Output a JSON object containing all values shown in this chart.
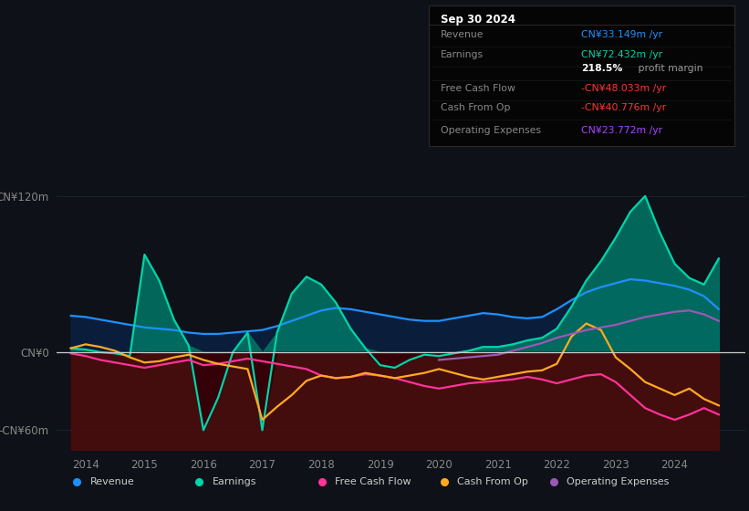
{
  "background_color": "#0e1117",
  "plot_bg_color": "#0e1117",
  "grid_color": "#1a2535",
  "zero_line_color": "#cccccc",
  "colors": {
    "revenue": "#1e90ff",
    "earnings": "#00d4aa",
    "fcf": "#ff3399",
    "cashfromop": "#ffaa22",
    "opex": "#9b59b6",
    "fill_earnings_pos": "#007766",
    "fill_earnings_neg": "#440011",
    "fill_revenue_pos": "#0a2040",
    "fill_negative_band": "#5a0a0a"
  },
  "ylim": [
    -75,
    145
  ],
  "yticks": [
    -60,
    0,
    120
  ],
  "ytick_labels": [
    "-CN¥60m",
    "CN¥0",
    "CN¥120m"
  ],
  "xlim": [
    2013.5,
    2025.2
  ],
  "xtick_positions": [
    2014,
    2015,
    2016,
    2017,
    2018,
    2019,
    2020,
    2021,
    2022,
    2023,
    2024
  ],
  "xtick_labels": [
    "2014",
    "2015",
    "2016",
    "2017",
    "2018",
    "2019",
    "2020",
    "2021",
    "2022",
    "2023",
    "2024"
  ],
  "legend_items": [
    {
      "label": "Revenue",
      "color": "#1e90ff"
    },
    {
      "label": "Earnings",
      "color": "#00d4aa"
    },
    {
      "label": "Free Cash Flow",
      "color": "#ff3399"
    },
    {
      "label": "Cash From Op",
      "color": "#ffaa22"
    },
    {
      "label": "Operating Expenses",
      "color": "#9b59b6"
    }
  ],
  "infobox": {
    "title": "Sep 30 2024",
    "rows": [
      {
        "label": "Revenue",
        "value": "CN¥33.149m /yr",
        "vcolor": "#1e90ff"
      },
      {
        "label": "Earnings",
        "value": "CN¥72.432m /yr",
        "vcolor": "#00d4aa"
      },
      {
        "label": "",
        "value": "218.5% profit margin",
        "vcolor": "#cccccc",
        "bold": "218.5%"
      },
      {
        "label": "Free Cash Flow",
        "value": "-CN¥48.033m /yr",
        "vcolor": "#ff3333"
      },
      {
        "label": "Cash From Op",
        "value": "-CN¥40.776m /yr",
        "vcolor": "#ff3333"
      },
      {
        "label": "Operating Expenses",
        "value": "CN¥23.772m /yr",
        "vcolor": "#aa44ff"
      }
    ]
  },
  "years": [
    2013.75,
    2014.0,
    2014.25,
    2014.5,
    2014.75,
    2015.0,
    2015.25,
    2015.5,
    2015.75,
    2016.0,
    2016.25,
    2016.5,
    2016.75,
    2017.0,
    2017.25,
    2017.5,
    2017.75,
    2018.0,
    2018.25,
    2018.5,
    2018.75,
    2019.0,
    2019.25,
    2019.5,
    2019.75,
    2020.0,
    2020.25,
    2020.5,
    2020.75,
    2021.0,
    2021.25,
    2021.5,
    2021.75,
    2022.0,
    2022.25,
    2022.5,
    2022.75,
    2023.0,
    2023.25,
    2023.5,
    2023.75,
    2024.0,
    2024.25,
    2024.5,
    2024.75
  ],
  "revenue": [
    28,
    27,
    25,
    23,
    21,
    19,
    18,
    17,
    15,
    14,
    14,
    15,
    16,
    17,
    20,
    24,
    28,
    32,
    34,
    33,
    31,
    29,
    27,
    25,
    24,
    24,
    26,
    28,
    30,
    29,
    27,
    26,
    27,
    33,
    40,
    46,
    50,
    53,
    56,
    55,
    53,
    51,
    48,
    43,
    33
  ],
  "earnings": [
    3,
    2,
    0,
    -1,
    -3,
    75,
    55,
    25,
    5,
    -60,
    -35,
    0,
    15,
    -60,
    15,
    45,
    58,
    52,
    38,
    18,
    3,
    -10,
    -12,
    -6,
    -2,
    -3,
    -1,
    1,
    4,
    4,
    6,
    9,
    11,
    18,
    35,
    55,
    70,
    88,
    108,
    120,
    92,
    68,
    57,
    52,
    72
  ],
  "fcf": [
    -1,
    -3,
    -6,
    -8,
    -10,
    -12,
    -10,
    -8,
    -6,
    -10,
    -9,
    -7,
    -5,
    -7,
    -9,
    -11,
    -13,
    -18,
    -20,
    -19,
    -17,
    -18,
    -20,
    -23,
    -26,
    -28,
    -26,
    -24,
    -23,
    -22,
    -21,
    -19,
    -21,
    -24,
    -21,
    -18,
    -17,
    -23,
    -33,
    -43,
    -48,
    -52,
    -48,
    -43,
    -48
  ],
  "cashfromop": [
    3,
    6,
    4,
    1,
    -4,
    -8,
    -7,
    -4,
    -2,
    -6,
    -9,
    -11,
    -13,
    -52,
    -42,
    -33,
    -22,
    -18,
    -20,
    -19,
    -16,
    -18,
    -20,
    -18,
    -16,
    -13,
    -16,
    -19,
    -21,
    -19,
    -17,
    -15,
    -14,
    -9,
    12,
    22,
    17,
    -4,
    -13,
    -23,
    -28,
    -33,
    -28,
    -36,
    -41
  ],
  "opex": [
    null,
    null,
    null,
    null,
    null,
    null,
    null,
    null,
    null,
    null,
    null,
    null,
    null,
    null,
    null,
    null,
    null,
    null,
    null,
    null,
    null,
    null,
    null,
    null,
    null,
    -6,
    -5,
    -4,
    -3,
    -2,
    1,
    4,
    7,
    11,
    14,
    17,
    19,
    21,
    24,
    27,
    29,
    31,
    32,
    29,
    24
  ]
}
